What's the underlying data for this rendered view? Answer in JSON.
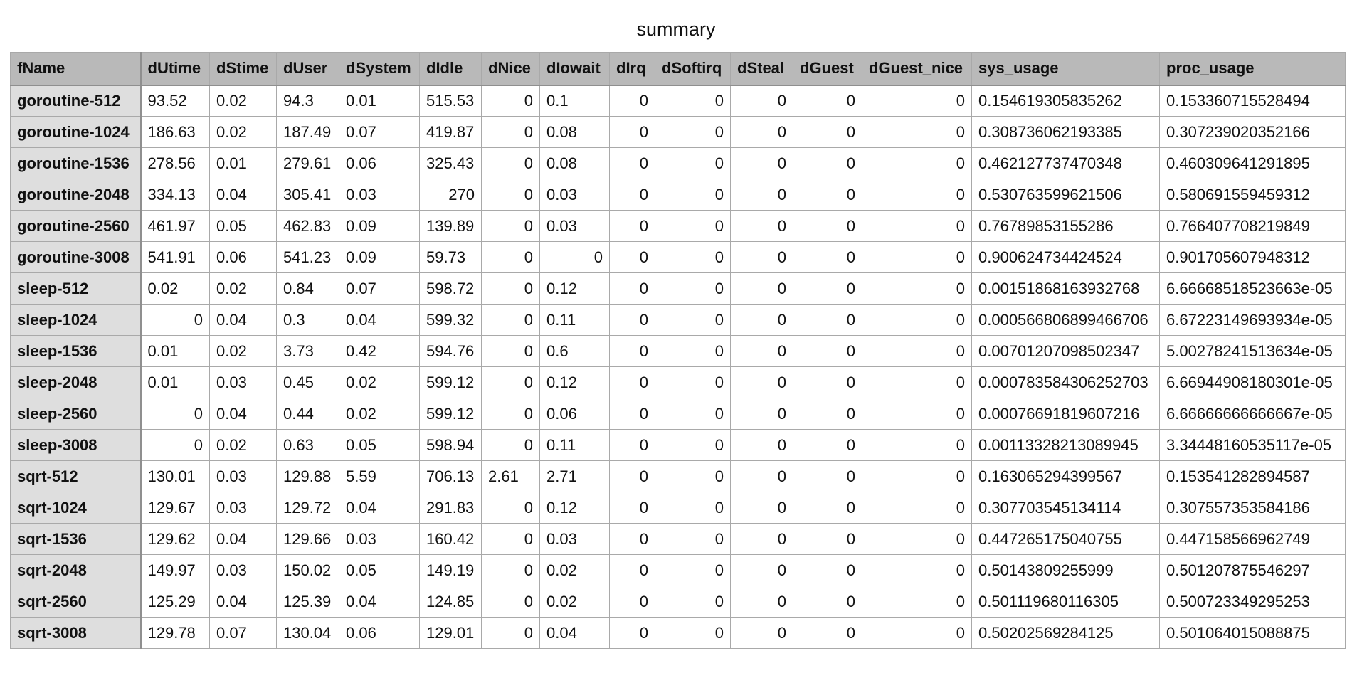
{
  "title": "summary",
  "table": {
    "headers": [
      "fName",
      "dUtime",
      "dStime",
      "dUser",
      "dSystem",
      "dIdle",
      "dNice",
      "dIowait",
      "dIrq",
      "dSoftirq",
      "dSteal",
      "dGuest",
      "dGuest_nice",
      "sys_usage",
      "proc_usage"
    ],
    "rows": [
      [
        "goroutine-512",
        "93.52",
        "0.02",
        "94.3",
        "0.01",
        "515.53",
        "0",
        "0.1",
        "0",
        "0",
        "0",
        "0",
        "0",
        "0.154619305835262",
        "0.153360715528494"
      ],
      [
        "goroutine-1024",
        "186.63",
        "0.02",
        "187.49",
        "0.07",
        "419.87",
        "0",
        "0.08",
        "0",
        "0",
        "0",
        "0",
        "0",
        "0.308736062193385",
        "0.307239020352166"
      ],
      [
        "goroutine-1536",
        "278.56",
        "0.01",
        "279.61",
        "0.06",
        "325.43",
        "0",
        "0.08",
        "0",
        "0",
        "0",
        "0",
        "0",
        "0.462127737470348",
        "0.460309641291895"
      ],
      [
        "goroutine-2048",
        "334.13",
        "0.04",
        "305.41",
        "0.03",
        "270",
        "0",
        "0.03",
        "0",
        "0",
        "0",
        "0",
        "0",
        "0.530763599621506",
        "0.580691559459312"
      ],
      [
        "goroutine-2560",
        "461.97",
        "0.05",
        "462.83",
        "0.09",
        "139.89",
        "0",
        "0.03",
        "0",
        "0",
        "0",
        "0",
        "0",
        "0.76789853155286",
        "0.766407708219849"
      ],
      [
        "goroutine-3008",
        "541.91",
        "0.06",
        "541.23",
        "0.09",
        "59.73",
        "0",
        "0",
        "0",
        "0",
        "0",
        "0",
        "0",
        "0.900624734424524",
        "0.901705607948312"
      ],
      [
        "sleep-512",
        "0.02",
        "0.02",
        "0.84",
        "0.07",
        "598.72",
        "0",
        "0.12",
        "0",
        "0",
        "0",
        "0",
        "0",
        "0.00151868163932768",
        "6.66668518523663e-05"
      ],
      [
        "sleep-1024",
        "0",
        "0.04",
        "0.3",
        "0.04",
        "599.32",
        "0",
        "0.11",
        "0",
        "0",
        "0",
        "0",
        "0",
        "0.000566806899466706",
        "6.67223149693934e-05"
      ],
      [
        "sleep-1536",
        "0.01",
        "0.02",
        "3.73",
        "0.42",
        "594.76",
        "0",
        "0.6",
        "0",
        "0",
        "0",
        "0",
        "0",
        "0.00701207098502347",
        "5.00278241513634e-05"
      ],
      [
        "sleep-2048",
        "0.01",
        "0.03",
        "0.45",
        "0.02",
        "599.12",
        "0",
        "0.12",
        "0",
        "0",
        "0",
        "0",
        "0",
        "0.000783584306252703",
        "6.66944908180301e-05"
      ],
      [
        "sleep-2560",
        "0",
        "0.04",
        "0.44",
        "0.02",
        "599.12",
        "0",
        "0.06",
        "0",
        "0",
        "0",
        "0",
        "0",
        "0.00076691819607216",
        "6.66666666666667e-05"
      ],
      [
        "sleep-3008",
        "0",
        "0.02",
        "0.63",
        "0.05",
        "598.94",
        "0",
        "0.11",
        "0",
        "0",
        "0",
        "0",
        "0",
        "0.00113328213089945",
        "3.34448160535117e-05"
      ],
      [
        "sqrt-512",
        "130.01",
        "0.03",
        "129.88",
        "5.59",
        "706.13",
        "2.61",
        "2.71",
        "0",
        "0",
        "0",
        "0",
        "0",
        "0.163065294399567",
        "0.153541282894587"
      ],
      [
        "sqrt-1024",
        "129.67",
        "0.03",
        "129.72",
        "0.04",
        "291.83",
        "0",
        "0.12",
        "0",
        "0",
        "0",
        "0",
        "0",
        "0.307703545134114",
        "0.307557353584186"
      ],
      [
        "sqrt-1536",
        "129.62",
        "0.04",
        "129.66",
        "0.03",
        "160.42",
        "0",
        "0.03",
        "0",
        "0",
        "0",
        "0",
        "0",
        "0.447265175040755",
        "0.447158566962749"
      ],
      [
        "sqrt-2048",
        "149.97",
        "0.03",
        "150.02",
        "0.05",
        "149.19",
        "0",
        "0.02",
        "0",
        "0",
        "0",
        "0",
        "0",
        "0.50143809255999",
        "0.501207875546297"
      ],
      [
        "sqrt-2560",
        "125.29",
        "0.04",
        "125.39",
        "0.04",
        "124.85",
        "0",
        "0.02",
        "0",
        "0",
        "0",
        "0",
        "0",
        "0.501119680116305",
        "0.500723349295253"
      ],
      [
        "sqrt-3008",
        "129.78",
        "0.07",
        "130.04",
        "0.06",
        "129.01",
        "0",
        "0.04",
        "0",
        "0",
        "0",
        "0",
        "0",
        "0.50202569284125",
        "0.501064015088875"
      ]
    ]
  }
}
